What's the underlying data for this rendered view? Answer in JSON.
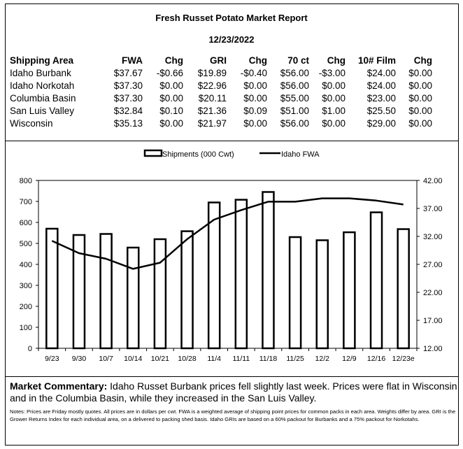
{
  "report": {
    "title": "Fresh Russet Potato Market Report",
    "date": "12/23/2022"
  },
  "table": {
    "headers": [
      "Shipping Area",
      "FWA",
      "Chg",
      "GRI",
      "Chg",
      "70 ct",
      "Chg",
      "10# Film",
      "Chg"
    ],
    "rows": [
      [
        "Idaho Burbank",
        "$37.67",
        "-$0.66",
        "$19.89",
        "-$0.40",
        "$56.00",
        "-$3.00",
        "$24.00",
        "$0.00"
      ],
      [
        "Idaho Norkotah",
        "$37.30",
        "$0.00",
        "$22.96",
        "$0.00",
        "$56.00",
        "$0.00",
        "$24.00",
        "$0.00"
      ],
      [
        "Columbia Basin",
        "$37.30",
        "$0.00",
        "$20.11",
        "$0.00",
        "$55.00",
        "$0.00",
        "$23.00",
        "$0.00"
      ],
      [
        "San Luis Valley",
        "$32.84",
        "$0.10",
        "$21.36",
        "$0.09",
        "$51.00",
        "$1.00",
        "$25.50",
        "$0.00"
      ],
      [
        "Wisconsin",
        "$35.13",
        "$0.00",
        "$21.97",
        "$0.00",
        "$56.00",
        "$0.00",
        "$29.00",
        "$0.00"
      ]
    ]
  },
  "chart_data": {
    "type": "bar",
    "categories": [
      "9/23",
      "9/30",
      "10/7",
      "10/14",
      "10/21",
      "10/28",
      "11/4",
      "11/11",
      "11/18",
      "11/25",
      "12/2",
      "12/9",
      "12/16",
      "12/23e"
    ],
    "series": [
      {
        "name": "Shipments (000 Cwt)",
        "type": "bar",
        "axis": "left",
        "values": [
          570,
          540,
          545,
          480,
          520,
          558,
          695,
          708,
          745,
          530,
          515,
          553,
          648,
          568
        ]
      },
      {
        "name": "Idaho FWA",
        "type": "line",
        "axis": "right",
        "values": [
          31.2,
          29.0,
          28.0,
          26.2,
          27.3,
          31.5,
          35.0,
          36.7,
          38.2,
          38.2,
          38.8,
          38.8,
          38.4,
          37.7
        ]
      }
    ],
    "ylim": [
      0,
      800
    ],
    "yticks": [
      "0",
      "100",
      "200",
      "300",
      "400",
      "500",
      "600",
      "700",
      "800"
    ],
    "y2lim": [
      12,
      42
    ],
    "y2ticks": [
      "12.00",
      "17.00",
      "22.00",
      "27.00",
      "32.00",
      "37.00",
      "42.00"
    ],
    "legend": "top-center",
    "grid": false
  },
  "commentary": {
    "label": "Market Commentary:",
    "text": "Idaho Russet Burbank prices fell slightly last week. Prices were flat in Wisconsin and in the Columbia Basin, while they increased in the San Luis Valley."
  },
  "notes": "Notes: Prices are Friday mostly quotes. All prices are in dollars per cwt. FWA is a weighted average of shipping point prices for  common packs in each area. Weights differ by area. GRI is the Grower Returns Index for each individual area, on a delivered to packing shed basis. Idaho GRIs are based on a 60% packout for Burbanks and a 75% packout for Norkotahs."
}
